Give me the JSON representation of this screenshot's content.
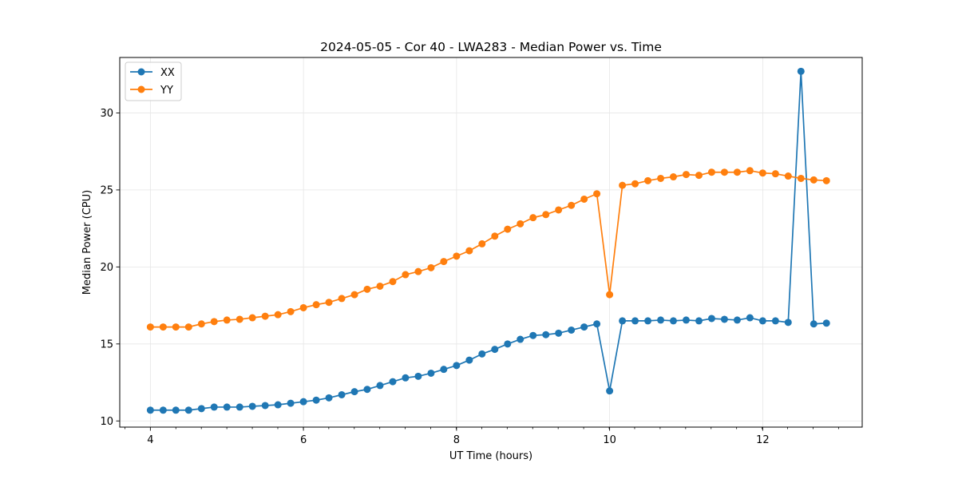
{
  "chart_data": {
    "type": "line",
    "title": "2024-05-05 - Cor 40 - LWA283 - Median Power vs. Time",
    "xlabel": "UT Time (hours)",
    "ylabel": "Median Power (CPU)",
    "xlim": [
      3.6,
      13.3
    ],
    "ylim": [
      9.6,
      33.6
    ],
    "xticks": [
      4,
      6,
      8,
      10,
      12
    ],
    "xtick_labels": [
      "4",
      "6",
      "8",
      "10",
      "12"
    ],
    "yticks": [
      10,
      15,
      20,
      25,
      30
    ],
    "ytick_labels": [
      "10",
      "15",
      "20",
      "25",
      "30"
    ],
    "x_minor_step": 0.333,
    "grid": true,
    "legend_position": "top-left",
    "x": [
      4.0,
      4.167,
      4.333,
      4.5,
      4.667,
      4.833,
      5.0,
      5.167,
      5.333,
      5.5,
      5.667,
      5.833,
      6.0,
      6.167,
      6.333,
      6.5,
      6.667,
      6.833,
      7.0,
      7.167,
      7.333,
      7.5,
      7.667,
      7.833,
      8.0,
      8.167,
      8.333,
      8.5,
      8.667,
      8.833,
      9.0,
      9.167,
      9.333,
      9.5,
      9.667,
      9.833,
      10.0,
      10.167,
      10.333,
      10.5,
      10.667,
      10.833,
      11.0,
      11.167,
      11.333,
      11.5,
      11.667,
      11.833,
      12.0,
      12.167,
      12.333,
      12.5,
      12.667,
      12.833
    ],
    "series": [
      {
        "name": "XX",
        "color": "#1f77b4",
        "values": [
          10.7,
          10.7,
          10.7,
          10.7,
          10.8,
          10.9,
          10.9,
          10.9,
          10.95,
          11.0,
          11.05,
          11.15,
          11.25,
          11.35,
          11.5,
          11.7,
          11.9,
          12.05,
          12.3,
          12.55,
          12.8,
          12.9,
          13.1,
          13.35,
          13.6,
          13.95,
          14.35,
          14.65,
          15.0,
          15.3,
          15.55,
          15.6,
          15.7,
          15.9,
          16.1,
          16.3,
          11.95,
          16.5,
          16.5,
          16.5,
          16.55,
          16.5,
          16.55,
          16.5,
          16.65,
          16.6,
          16.55,
          16.7,
          16.5,
          16.5,
          16.4,
          32.7,
          16.3,
          16.35
        ]
      },
      {
        "name": "YY",
        "color": "#ff7f0e",
        "values": [
          16.1,
          16.1,
          16.1,
          16.1,
          16.3,
          16.45,
          16.55,
          16.6,
          16.7,
          16.8,
          16.9,
          17.1,
          17.35,
          17.55,
          17.7,
          17.95,
          18.2,
          18.55,
          18.75,
          19.05,
          19.5,
          19.7,
          19.95,
          20.35,
          20.7,
          21.05,
          21.5,
          22.0,
          22.45,
          22.8,
          23.2,
          23.4,
          23.7,
          24.0,
          24.4,
          24.75,
          18.2,
          25.3,
          25.4,
          25.6,
          25.75,
          25.85,
          26.0,
          25.95,
          26.15,
          26.15,
          26.15,
          26.25,
          26.1,
          26.05,
          25.9,
          25.75,
          25.65,
          25.6
        ]
      }
    ]
  }
}
